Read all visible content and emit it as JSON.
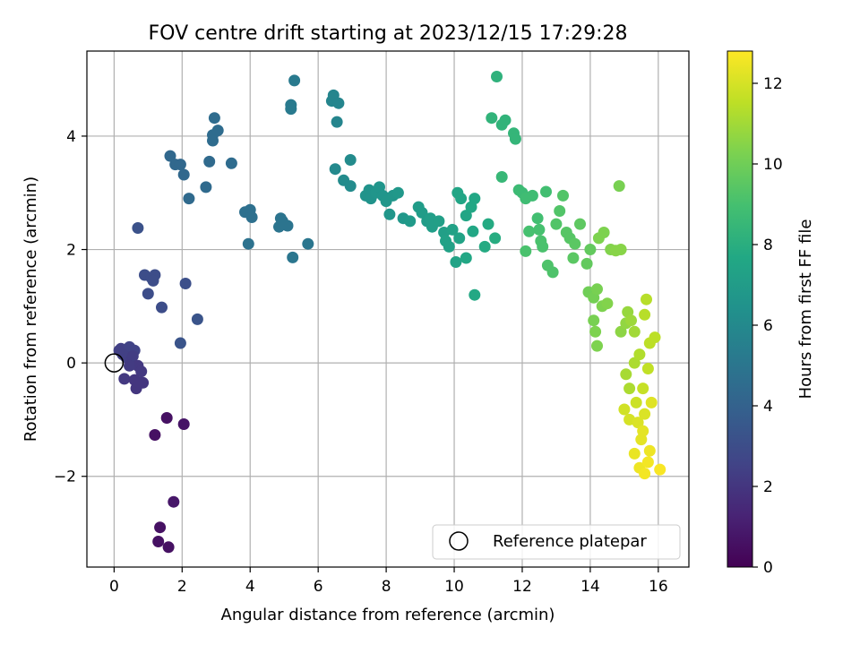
{
  "chart_data": {
    "type": "scatter",
    "title": "FOV centre drift starting at 2023/12/15 17:29:28",
    "xlabel": "Angular distance from reference (arcmin)",
    "ylabel": "Rotation from reference (arcmin)",
    "xlim": [
      -0.8,
      16.9
    ],
    "ylim": [
      -3.6,
      5.5
    ],
    "x_ticks": [
      0,
      2,
      4,
      6,
      8,
      10,
      12,
      14,
      16
    ],
    "y_ticks": [
      -2,
      0,
      2,
      4
    ],
    "x_tick_labels": [
      "0",
      "2",
      "4",
      "6",
      "8",
      "10",
      "12",
      "14",
      "16"
    ],
    "y_tick_labels": [
      "−2",
      "0",
      "2",
      "4"
    ],
    "grid": true,
    "legend": {
      "position": "lower-right",
      "entries": [
        "Reference platepar"
      ]
    },
    "reference_point": {
      "x": 0,
      "y": 0
    },
    "colorbar": {
      "label": "Hours from first FF file",
      "range": [
        0,
        12.8
      ],
      "ticks": [
        0,
        2,
        4,
        6,
        8,
        10,
        12
      ],
      "tick_labels": [
        "0",
        "2",
        "4",
        "6",
        "8",
        "10",
        "12"
      ],
      "colormap": "viridis"
    },
    "columns": [
      "x",
      "y",
      "hours"
    ],
    "points": [
      [
        1.3,
        -3.15,
        0.6
      ],
      [
        1.6,
        -3.25,
        0.6
      ],
      [
        1.35,
        -2.9,
        0.6
      ],
      [
        1.75,
        -2.45,
        0.8
      ],
      [
        1.55,
        -0.97,
        0.6
      ],
      [
        1.2,
        -1.27,
        0.6
      ],
      [
        2.05,
        -1.08,
        0.7
      ],
      [
        0.2,
        0.25,
        2.4
      ],
      [
        0.3,
        0.22,
        2.4
      ],
      [
        0.35,
        0.2,
        2.3
      ],
      [
        0.45,
        0.28,
        2.5
      ],
      [
        0.6,
        0.22,
        2.5
      ],
      [
        0.35,
        0.1,
        2.4
      ],
      [
        0.25,
        0.15,
        2.4
      ],
      [
        0.15,
        0.22,
        2.4
      ],
      [
        0.5,
        0.05,
        2.3
      ],
      [
        0.55,
        0.12,
        2.3
      ],
      [
        0.3,
        -0.28,
        2.1
      ],
      [
        0.7,
        -0.05,
        2.1
      ],
      [
        0.8,
        -0.15,
        2.1
      ],
      [
        0.85,
        -0.35,
        2.0
      ],
      [
        0.6,
        -0.3,
        2.0
      ],
      [
        0.65,
        -0.45,
        2.0
      ],
      [
        0.75,
        -0.35,
        2.0
      ],
      [
        0.45,
        -0.05,
        2.2
      ],
      [
        0.7,
        2.38,
        3.2
      ],
      [
        0.9,
        1.55,
        3.0
      ],
      [
        1.1,
        1.5,
        3.0
      ],
      [
        1.2,
        1.55,
        3.0
      ],
      [
        1.15,
        1.45,
        3.0
      ],
      [
        1.0,
        1.22,
        3.0
      ],
      [
        1.4,
        0.98,
        3.0
      ],
      [
        2.1,
        1.4,
        3.1
      ],
      [
        2.45,
        0.77,
        3.3
      ],
      [
        1.95,
        0.35,
        3.3
      ],
      [
        1.65,
        3.65,
        4.3
      ],
      [
        1.8,
        3.5,
        4.3
      ],
      [
        1.95,
        3.5,
        4.3
      ],
      [
        2.05,
        3.32,
        4.3
      ],
      [
        2.2,
        2.9,
        4.4
      ],
      [
        2.7,
        3.1,
        4.4
      ],
      [
        2.8,
        3.55,
        4.4
      ],
      [
        2.9,
        3.92,
        4.5
      ],
      [
        2.9,
        4.02,
        4.5
      ],
      [
        3.05,
        4.1,
        4.5
      ],
      [
        2.95,
        4.32,
        4.5
      ],
      [
        3.45,
        3.52,
        4.5
      ],
      [
        3.85,
        2.66,
        4.7
      ],
      [
        4.0,
        2.7,
        4.7
      ],
      [
        4.05,
        2.57,
        4.7
      ],
      [
        3.95,
        2.1,
        4.8
      ],
      [
        4.85,
        2.4,
        4.9
      ],
      [
        4.95,
        2.5,
        4.9
      ],
      [
        4.9,
        2.55,
        4.9
      ],
      [
        5.1,
        2.42,
        4.9
      ],
      [
        5.25,
        1.86,
        5.0
      ],
      [
        5.7,
        2.1,
        5.0
      ],
      [
        5.2,
        4.48,
        5.2
      ],
      [
        5.2,
        4.55,
        5.2
      ],
      [
        5.3,
        4.98,
        5.2
      ],
      [
        6.4,
        4.62,
        5.8
      ],
      [
        6.45,
        4.72,
        5.8
      ],
      [
        6.6,
        4.58,
        5.8
      ],
      [
        6.55,
        4.25,
        5.8
      ],
      [
        6.5,
        3.42,
        6.0
      ],
      [
        6.75,
        3.22,
        6.1
      ],
      [
        6.95,
        3.12,
        6.1
      ],
      [
        6.95,
        3.58,
        6.1
      ],
      [
        7.4,
        2.95,
        6.5
      ],
      [
        7.5,
        3.05,
        6.5
      ],
      [
        7.55,
        2.9,
        6.5
      ],
      [
        7.7,
        3.0,
        6.6
      ],
      [
        7.8,
        3.1,
        6.6
      ],
      [
        7.9,
        2.95,
        6.6
      ],
      [
        8.0,
        2.85,
        6.7
      ],
      [
        8.1,
        2.62,
        6.7
      ],
      [
        8.2,
        2.95,
        6.7
      ],
      [
        8.35,
        3.0,
        6.8
      ],
      [
        8.5,
        2.55,
        6.8
      ],
      [
        8.7,
        2.5,
        6.9
      ],
      [
        8.95,
        2.75,
        7.0
      ],
      [
        9.05,
        2.65,
        7.0
      ],
      [
        9.2,
        2.5,
        7.0
      ],
      [
        9.3,
        2.55,
        7.1
      ],
      [
        9.35,
        2.4,
        7.1
      ],
      [
        9.55,
        2.5,
        7.2
      ],
      [
        9.7,
        2.3,
        7.2
      ],
      [
        9.75,
        2.15,
        7.3
      ],
      [
        9.85,
        2.05,
        7.3
      ],
      [
        9.95,
        2.35,
        7.3
      ],
      [
        10.05,
        1.78,
        7.4
      ],
      [
        10.15,
        2.2,
        7.4
      ],
      [
        10.1,
        3.0,
        7.5
      ],
      [
        10.2,
        2.9,
        7.5
      ],
      [
        10.35,
        2.6,
        7.5
      ],
      [
        10.5,
        2.75,
        7.6
      ],
      [
        10.55,
        2.32,
        7.6
      ],
      [
        10.6,
        2.9,
        7.6
      ],
      [
        10.6,
        1.2,
        7.7
      ],
      [
        10.35,
        1.85,
        7.6
      ],
      [
        10.9,
        2.05,
        7.8
      ],
      [
        11.0,
        2.45,
        7.8
      ],
      [
        11.2,
        2.2,
        7.9
      ],
      [
        11.25,
        5.05,
        8.2
      ],
      [
        11.1,
        4.32,
        8.3
      ],
      [
        11.4,
        4.2,
        8.3
      ],
      [
        11.5,
        4.28,
        8.3
      ],
      [
        11.75,
        4.05,
        8.4
      ],
      [
        11.8,
        3.95,
        8.4
      ],
      [
        11.4,
        3.28,
        8.5
      ],
      [
        11.9,
        3.05,
        8.7
      ],
      [
        12.0,
        3.0,
        8.7
      ],
      [
        12.1,
        2.9,
        8.8
      ],
      [
        12.3,
        2.95,
        8.8
      ],
      [
        12.45,
        2.55,
        8.9
      ],
      [
        12.7,
        3.02,
        8.9
      ],
      [
        12.2,
        2.32,
        9.0
      ],
      [
        12.5,
        2.35,
        9.0
      ],
      [
        12.55,
        2.15,
        9.1
      ],
      [
        12.6,
        2.05,
        9.1
      ],
      [
        12.75,
        1.72,
        9.2
      ],
      [
        12.9,
        1.6,
        9.2
      ],
      [
        12.1,
        1.97,
        9.1
      ],
      [
        13.0,
        2.45,
        9.3
      ],
      [
        13.2,
        2.95,
        9.3
      ],
      [
        13.1,
        2.68,
        9.3
      ],
      [
        13.3,
        2.3,
        9.4
      ],
      [
        13.4,
        2.2,
        9.4
      ],
      [
        13.55,
        2.1,
        9.5
      ],
      [
        13.5,
        1.85,
        9.5
      ],
      [
        13.7,
        2.45,
        9.6
      ],
      [
        13.9,
        1.75,
        9.7
      ],
      [
        14.0,
        2.0,
        9.7
      ],
      [
        13.95,
        1.25,
        10.0
      ],
      [
        14.1,
        1.15,
        10.1
      ],
      [
        14.2,
        1.3,
        10.2
      ],
      [
        14.1,
        0.75,
        10.2
      ],
      [
        14.15,
        0.55,
        10.3
      ],
      [
        14.2,
        0.3,
        10.3
      ],
      [
        14.35,
        1.0,
        10.3
      ],
      [
        14.5,
        1.05,
        10.4
      ],
      [
        14.25,
        2.2,
        10.3
      ],
      [
        14.4,
        2.3,
        10.3
      ],
      [
        14.6,
        2.0,
        10.4
      ],
      [
        14.75,
        1.98,
        10.5
      ],
      [
        14.9,
        2.0,
        10.5
      ],
      [
        14.85,
        3.12,
        10.2
      ],
      [
        14.9,
        0.55,
        10.6
      ],
      [
        15.05,
        0.7,
        10.7
      ],
      [
        15.1,
        0.9,
        10.8
      ],
      [
        15.2,
        0.75,
        10.9
      ],
      [
        15.3,
        0.55,
        11.0
      ],
      [
        15.05,
        -0.2,
        11.1
      ],
      [
        15.15,
        -0.45,
        11.2
      ],
      [
        15.3,
        0.0,
        11.2
      ],
      [
        15.45,
        0.15,
        11.3
      ],
      [
        15.6,
        0.85,
        11.4
      ],
      [
        15.65,
        1.12,
        11.4
      ],
      [
        15.75,
        0.35,
        11.5
      ],
      [
        15.9,
        0.45,
        11.5
      ],
      [
        15.7,
        -0.1,
        11.6
      ],
      [
        15.55,
        -0.45,
        11.7
      ],
      [
        15.35,
        -0.7,
        11.8
      ],
      [
        15.0,
        -0.82,
        11.9
      ],
      [
        15.15,
        -1.0,
        12.0
      ],
      [
        15.4,
        -1.05,
        12.1
      ],
      [
        15.6,
        -0.9,
        12.1
      ],
      [
        15.8,
        -0.7,
        12.2
      ],
      [
        15.5,
        -1.35,
        12.3
      ],
      [
        15.3,
        -1.6,
        12.4
      ],
      [
        15.45,
        -1.85,
        12.5
      ],
      [
        15.7,
        -1.75,
        12.6
      ],
      [
        15.6,
        -1.95,
        12.6
      ],
      [
        16.05,
        -1.88,
        12.7
      ],
      [
        15.75,
        -1.55,
        12.5
      ],
      [
        15.55,
        -1.2,
        12.3
      ]
    ]
  }
}
